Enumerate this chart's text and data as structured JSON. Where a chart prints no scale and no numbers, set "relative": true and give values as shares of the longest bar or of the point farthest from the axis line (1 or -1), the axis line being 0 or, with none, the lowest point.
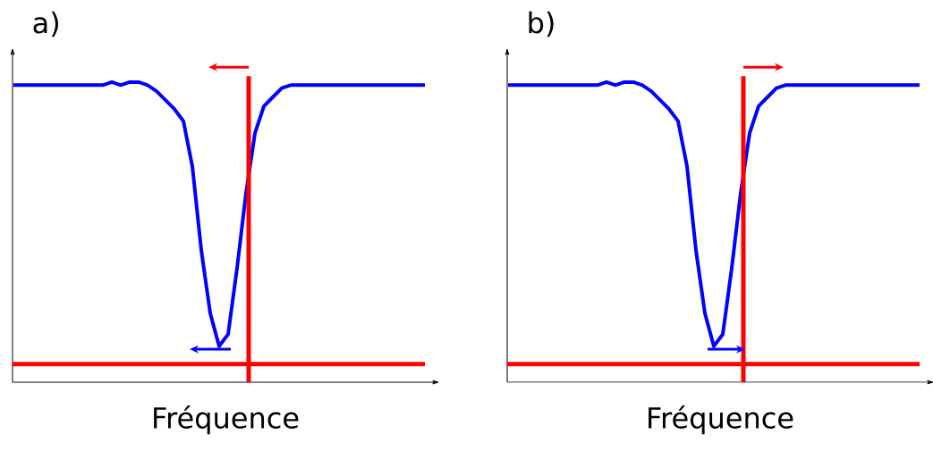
{
  "chart_data": [
    {
      "type": "line",
      "title": "a)",
      "xlabel": "Fréquence",
      "relative": true,
      "tick_labels": false,
      "categories": [
        null,
        null,
        null,
        null,
        null,
        null,
        null,
        null,
        null,
        null,
        null,
        null,
        null,
        null,
        null,
        null,
        null,
        null,
        null,
        null,
        null,
        null,
        null,
        null,
        null,
        null,
        null,
        null,
        null,
        null,
        null,
        null,
        null,
        null,
        null,
        null,
        null,
        null,
        null,
        null,
        null,
        null,
        null,
        null,
        null,
        null,
        null
      ],
      "series": [
        {
          "color": "#0000ff",
          "values": [
            0.99,
            0.99,
            0.99,
            0.99,
            0.99,
            0.99,
            0.99,
            0.99,
            0.99,
            0.99,
            0.99,
            1.0,
            0.99,
            1.0,
            1.0,
            0.99,
            0.97,
            0.94,
            0.91,
            0.87,
            0.72,
            0.44,
            0.23,
            0.12,
            0.16,
            0.38,
            0.63,
            0.83,
            0.92,
            0.95,
            0.98,
            0.99,
            0.99,
            0.99,
            0.99,
            0.99,
            0.99,
            0.99,
            0.99,
            0.99,
            0.99,
            0.99,
            0.99,
            0.99,
            0.99,
            0.99,
            0.99
          ]
        }
      ],
      "ref_lines": [
        {
          "axis": "y",
          "value": 0.06,
          "color": "#ff0000"
        }
      ]
    },
    {
      "type": "line",
      "title": "b)",
      "xlabel": "Fréquence",
      "relative": true,
      "tick_labels": false,
      "categories": [
        null,
        null,
        null,
        null,
        null,
        null,
        null,
        null,
        null,
        null,
        null,
        null,
        null,
        null,
        null,
        null,
        null,
        null,
        null,
        null,
        null,
        null,
        null,
        null,
        null,
        null,
        null,
        null,
        null,
        null,
        null,
        null,
        null,
        null,
        null,
        null,
        null,
        null,
        null,
        null,
        null,
        null,
        null,
        null,
        null,
        null,
        null
      ],
      "series": [
        {
          "color": "#0000ff",
          "values": [
            0.99,
            0.99,
            0.99,
            0.99,
            0.99,
            0.99,
            0.99,
            0.99,
            0.99,
            0.99,
            0.99,
            1.0,
            0.99,
            1.0,
            1.0,
            0.99,
            0.97,
            0.94,
            0.91,
            0.87,
            0.72,
            0.44,
            0.23,
            0.12,
            0.16,
            0.38,
            0.63,
            0.83,
            0.92,
            0.95,
            0.98,
            0.99,
            0.99,
            0.99,
            0.99,
            0.99,
            0.99,
            0.99,
            0.99,
            0.99,
            0.99,
            0.99,
            0.99,
            0.99,
            0.99,
            0.99,
            0.99
          ]
        }
      ],
      "ref_lines": [
        {
          "axis": "y",
          "value": 0.06,
          "color": "#ff0000"
        }
      ]
    }
  ]
}
